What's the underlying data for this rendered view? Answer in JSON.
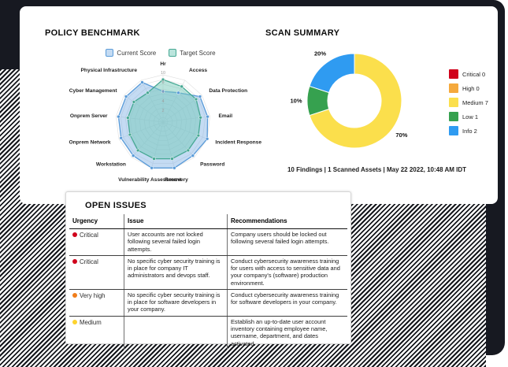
{
  "cards": {
    "policy_benchmark": {
      "title": "POLICY BENCHMARK"
    },
    "scan_summary": {
      "title": "SCAN SUMMARY",
      "caption": "10 Findings | 1 Scanned Assets | May 22 2022, 10:48 AM IDT"
    },
    "open_issues": {
      "title": "OPEN ISSUES",
      "columns": [
        "Urgency",
        "Issue",
        "Recommendations"
      ],
      "rows": [
        {
          "urgency": "Critical",
          "dot_color": "#d0021b",
          "issue": "User accounts are not locked following several failed login attempts.",
          "rec": "Company users should be locked out following several failed login attempts."
        },
        {
          "urgency": "Critical",
          "dot_color": "#d0021b",
          "issue": "No specific cyber security training is in place for company IT administrators and devops staff.",
          "rec": "Conduct cybersecurity awareness training for users with access to sensitive data and your company's (software) production environment."
        },
        {
          "urgency": "Very high",
          "dot_color": "#f07d1a",
          "issue": "No specific cyber security training is in place for software developers in your company.",
          "rec": "Conduct cybersecurity awareness training for software developers in your company."
        },
        {
          "urgency": "Medium",
          "dot_color": "#fdd32e",
          "issue": "",
          "rec": "Establish an up-to-date user account inventory containing employee name, username, department, and dates activated."
        }
      ]
    }
  },
  "chart_data": [
    {
      "type": "radar",
      "title": "POLICY BENCHMARK",
      "max": 10,
      "ticks": [
        2,
        4,
        6,
        8,
        10
      ],
      "legend_position": "top",
      "categories": [
        "Hr",
        "Access",
        "Data Protection",
        "Email",
        "Incident Response",
        "Password",
        "Recovery",
        "Vulnerability Assessment",
        "Workstation",
        "Onprem Network",
        "Onprem Server",
        "Cyber Management",
        "Physical Infrastructure"
      ],
      "series": [
        {
          "name": "Current Score",
          "color": "#5a9bd8",
          "fill": "rgba(124,175,229,0.45)",
          "values": [
            6.5,
            7,
            9.5,
            9.5,
            10,
            9.5,
            10,
            10,
            9.5,
            9.5,
            9.5,
            9.5,
            9.5
          ]
        },
        {
          "name": "Target Score",
          "color": "#46a893",
          "fill": "rgba(118,201,185,0.5)",
          "values": [
            9,
            8.5,
            8.5,
            8,
            8,
            8,
            8,
            8,
            8,
            7.5,
            7.5,
            7.5,
            7
          ]
        }
      ]
    },
    {
      "type": "pie",
      "subtype": "donut",
      "title": "SCAN SUMMARY",
      "legend_position": "right",
      "slices": [
        {
          "label": "Medium",
          "count": 7,
          "pct": 70,
          "color": "#fbdf4c"
        },
        {
          "label": "Low",
          "count": 1,
          "pct": 10,
          "color": "#36a14f"
        },
        {
          "label": "Info",
          "count": 2,
          "pct": 20,
          "color": "#2f9bf1"
        }
      ],
      "legend": [
        {
          "label": "Critical 0",
          "color": "#d0021b"
        },
        {
          "label": "High 0",
          "color": "#f5a93c"
        },
        {
          "label": "Medium 7",
          "color": "#fbdf4c"
        },
        {
          "label": "Low 1",
          "color": "#36a14f"
        },
        {
          "label": "Info 2",
          "color": "#2f9bf1"
        }
      ]
    }
  ]
}
